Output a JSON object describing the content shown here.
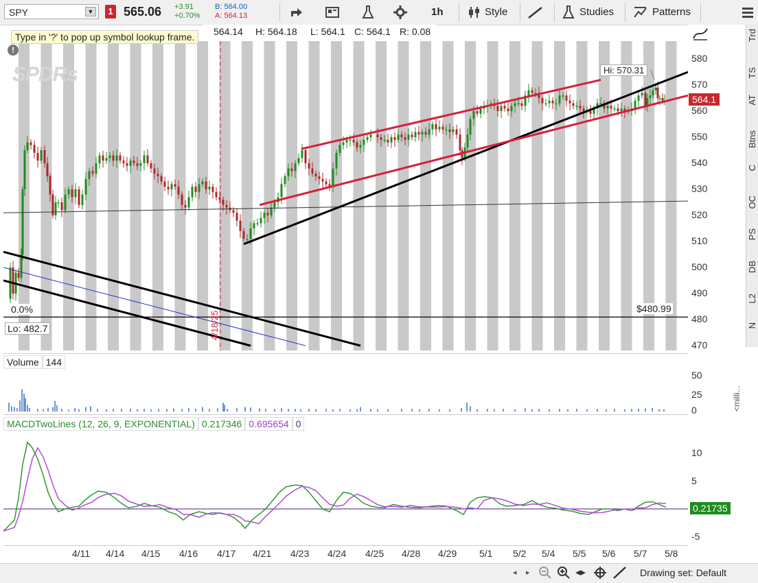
{
  "toolbar": {
    "symbol": "SPY",
    "alert_count": "1",
    "last_price": "565.06",
    "net_change": "+3.91",
    "pct_change": "+0.70%",
    "bid": "B: 564.00",
    "ask": "A: 564.13",
    "timeframe": "1h",
    "style_label": "Style",
    "studies_label": "Studies",
    "patterns_label": "Patterns"
  },
  "chart_header": {
    "tooltip": "Type in '?' to pop up symbol lookup frame.",
    "open": "564.14",
    "high": "H: 564.18",
    "low": "L: 564.1",
    "close": "C: 564.1",
    "range": "R: 0.08"
  },
  "price_panel": {
    "y_ticks": [
      "580",
      "570",
      "560",
      "550",
      "540",
      "530",
      "520",
      "510",
      "500",
      "490",
      "480",
      "470"
    ],
    "hi_label": "Hi: 570.31",
    "lo_label": "Lo: 482.7",
    "last_badge": "564.1",
    "pct_label": "0.0%",
    "level_label": "$480.99",
    "date_marker": "4/18/25",
    "watermark": "SPDRs",
    "colors": {
      "channel": "#d81e3c",
      "trend": "#000000",
      "blue_line": "#2233cc",
      "bull": "#1f8c1f",
      "bear": "#b0262b",
      "badge": "#c8282d"
    }
  },
  "volume_panel": {
    "label": "Volume",
    "value": "144",
    "y_ticks": [
      "50",
      "25",
      "0"
    ],
    "side_label": "<milli..."
  },
  "macd_panel": {
    "label": "MACDTwoLines (12, 26, 9, EXPONENTIAL)",
    "value1": "0.217346",
    "value2": "0.695654",
    "value3": "0",
    "y_ticks": [
      "10",
      "5",
      "0",
      "-5"
    ],
    "last_badge": "0.21735",
    "colors": {
      "macd": "#2b9a2b",
      "signal": "#b04ad8",
      "zero": "#4b1a7a"
    }
  },
  "x_axis": {
    "dates": [
      "4/11",
      "4/14",
      "4/15",
      "4/16",
      "4/17",
      "4/21",
      "4/23",
      "4/24",
      "4/25",
      "4/28",
      "4/29",
      "5/1",
      "5/2",
      "5/4",
      "5/5",
      "5/6",
      "5/7",
      "5/8"
    ]
  },
  "right_tabs": [
    "Trd",
    "TS",
    "AT",
    "Btns",
    "C",
    "OC",
    "PS",
    "DB",
    "L2",
    "N"
  ],
  "bottom_bar": {
    "drawing_set": "Drawing set: Default"
  }
}
